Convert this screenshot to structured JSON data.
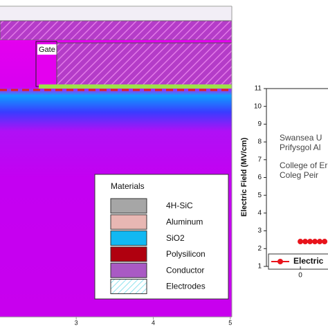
{
  "chart_data": [
    {
      "type": "map",
      "annotation": "Gate",
      "xlim": [
        2.01,
        5.02
      ],
      "xticks": [
        3,
        4,
        5
      ],
      "legend_title": "Materials",
      "materials": [
        {
          "name": "4H-SiC",
          "color": "#a6a6a6"
        },
        {
          "name": "Aluminum",
          "color": "#e8b7b3"
        },
        {
          "name": "SiO2",
          "color": "#12b8f2"
        },
        {
          "name": "Polysilicon",
          "color": "#b0000f"
        },
        {
          "name": "Conductor",
          "color": "#a95ac4"
        },
        {
          "name": "Electrodes",
          "color": "#8fe3ee",
          "hatched": true
        }
      ]
    },
    {
      "type": "line",
      "y_label": "Electric Field (MV/cm)",
      "x": [
        0,
        0.1,
        0.2,
        0.3,
        0.4,
        0.5
      ],
      "xlim": [
        -0.7,
        0.57
      ],
      "xticks": [
        0
      ],
      "ylim": [
        1,
        11
      ],
      "yticks": [
        1,
        2,
        3,
        4,
        5,
        6,
        7,
        8,
        9,
        10,
        11
      ],
      "series": [
        {
          "name": "Electric",
          "color": "#e8141c",
          "values": [
            2.4,
            2.4,
            2.4,
            2.4,
            2.4,
            2.4
          ]
        }
      ],
      "watermark": [
        "Swansea U",
        "Prifysgol Al",
        "College of Er",
        "Coleg Peir"
      ]
    }
  ]
}
